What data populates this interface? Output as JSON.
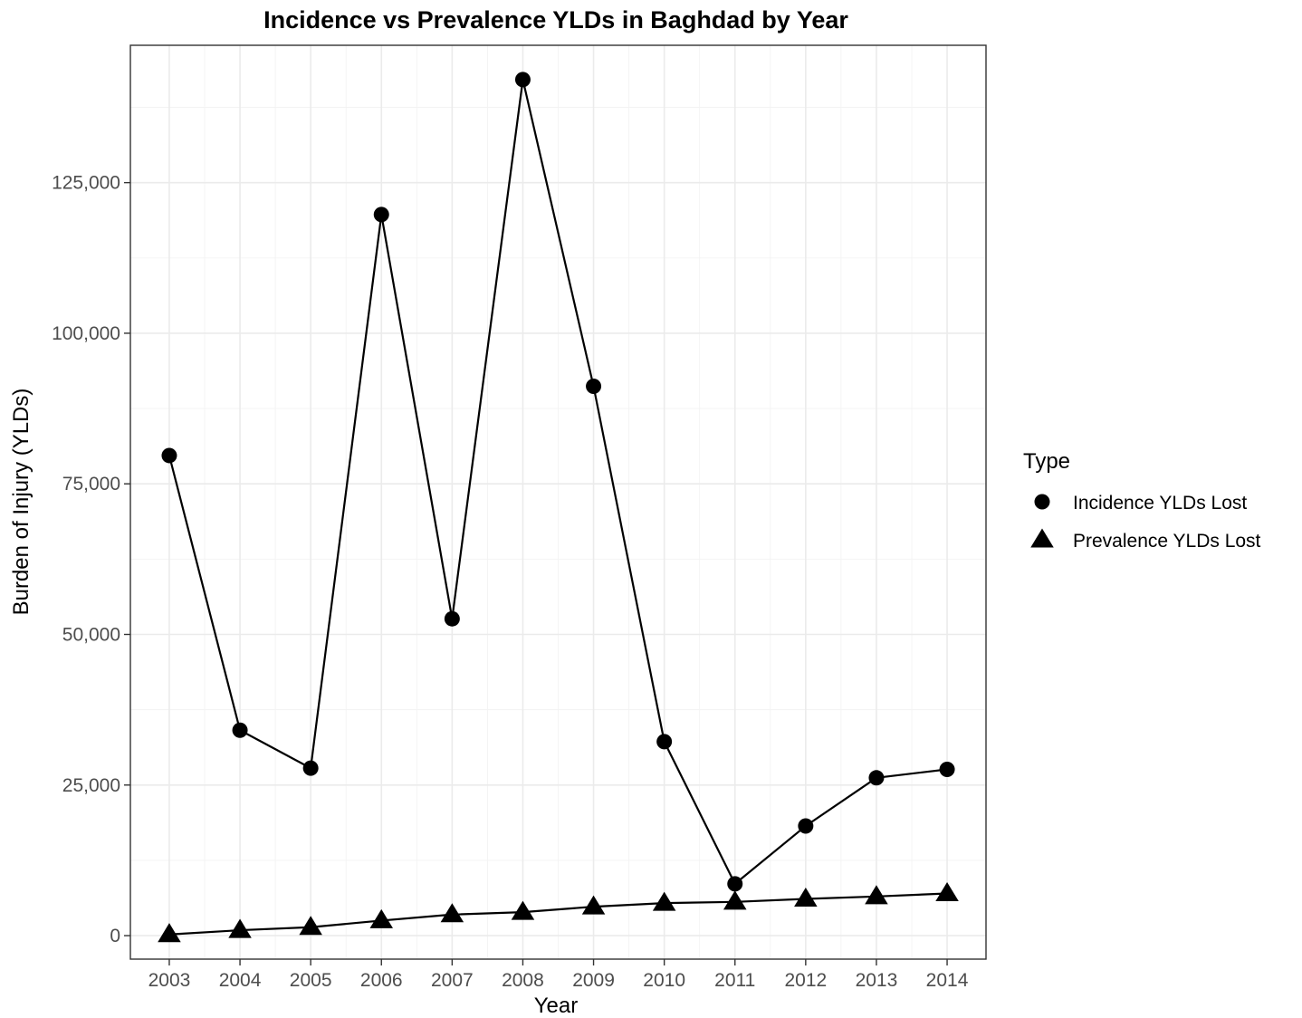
{
  "chart_data": {
    "type": "line",
    "title": "Incidence vs Prevalence YLDs in Baghdad by Year",
    "xlabel": "Year",
    "ylabel": "Burden of Injury (YLDs)",
    "x": [
      2003,
      2004,
      2005,
      2006,
      2007,
      2008,
      2009,
      2010,
      2011,
      2012,
      2013,
      2014
    ],
    "x_tick_labels": [
      "2003",
      "2004",
      "2005",
      "2006",
      "2007",
      "2008",
      "2009",
      "2010",
      "2011",
      "2012",
      "2013",
      "2014"
    ],
    "y_ticks": [
      0,
      25000,
      50000,
      75000,
      100000,
      125000
    ],
    "y_tick_labels": [
      "0",
      "25,000",
      "50,000",
      "75,000",
      "100,000",
      "125,000"
    ],
    "xlim": [
      2002.45,
      2014.55
    ],
    "ylim": [
      -3900,
      147800
    ],
    "grid": true,
    "legend": {
      "title": "Type",
      "position": "right"
    },
    "series": [
      {
        "name": "Incidence YLDs Lost",
        "marker": "circle",
        "color": "#000000",
        "values": [
          79700,
          34100,
          27800,
          119700,
          52600,
          142100,
          91200,
          32200,
          8600,
          18200,
          26200,
          27600
        ]
      },
      {
        "name": "Prevalence YLDs Lost",
        "marker": "triangle",
        "color": "#000000",
        "values": [
          200,
          900,
          1400,
          2500,
          3500,
          3900,
          4800,
          5400,
          5600,
          6100,
          6500,
          7000
        ]
      }
    ]
  }
}
